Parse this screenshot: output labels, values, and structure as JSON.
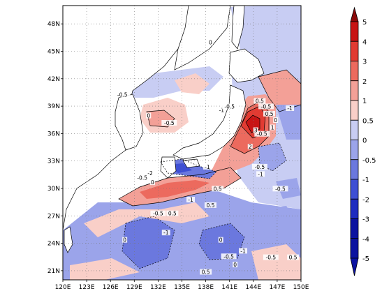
{
  "map": {
    "lon_ticks": [
      "120E",
      "123E",
      "126E",
      "129E",
      "132E",
      "135E",
      "138E",
      "141E",
      "144E",
      "147E",
      "150E"
    ],
    "lat_ticks": [
      "48N",
      "45N",
      "42N",
      "39N",
      "36N",
      "33N",
      "30N",
      "27N",
      "24N",
      "21N"
    ],
    "lon_range": [
      120,
      150
    ],
    "lat_range": [
      20,
      50
    ],
    "grid": "dotted",
    "contour_labels": [
      {
        "text": "0",
        "lon": 138.6,
        "lat": 45.9
      },
      {
        "text": "-0.5",
        "lon": 127.5,
        "lat": 40.2
      },
      {
        "text": "0",
        "lon": 130.8,
        "lat": 37.9
      },
      {
        "text": "-0.5",
        "lon": 133.4,
        "lat": 37.1
      },
      {
        "text": "-1",
        "lon": 140.0,
        "lat": 38.5
      },
      {
        "text": "-0.5",
        "lon": 141.0,
        "lat": 38.9
      },
      {
        "text": "-0.5",
        "lon": 145.6,
        "lat": 38.9
      },
      {
        "text": "0.5",
        "lon": 144.8,
        "lat": 39.5
      },
      {
        "text": "-1",
        "lon": 148.6,
        "lat": 38.7
      },
      {
        "text": "0.5",
        "lon": 146.0,
        "lat": 38.1
      },
      {
        "text": "0",
        "lon": 146.8,
        "lat": 37.4
      },
      {
        "text": "1",
        "lon": 146.4,
        "lat": 36.6
      },
      {
        "text": "-0.5",
        "lon": 145.1,
        "lat": 35.9
      },
      {
        "text": "3",
        "lon": 144.3,
        "lat": 36.3
      },
      {
        "text": "2",
        "lon": 143.6,
        "lat": 34.5
      },
      {
        "text": "-1",
        "lon": 138.2,
        "lat": 32.3
      },
      {
        "text": "-0.5",
        "lon": 144.8,
        "lat": 32.3
      },
      {
        "text": "-1",
        "lon": 144.9,
        "lat": 31.5
      },
      {
        "text": "-2",
        "lon": 131.0,
        "lat": 31.6
      },
      {
        "text": "-0.5",
        "lon": 130.0,
        "lat": 31.1
      },
      {
        "text": "0",
        "lon": 131.3,
        "lat": 30.6
      },
      {
        "text": "0.5",
        "lon": 139.5,
        "lat": 29.9
      },
      {
        "text": "-0.5",
        "lon": 147.4,
        "lat": 29.9
      },
      {
        "text": "-1",
        "lon": 136.1,
        "lat": 28.7
      },
      {
        "text": "0.5",
        "lon": 138.6,
        "lat": 28.1
      },
      {
        "text": "-0.5",
        "lon": 132.0,
        "lat": 27.2
      },
      {
        "text": "0.5",
        "lon": 133.8,
        "lat": 27.2
      },
      {
        "text": "-1",
        "lon": 133.0,
        "lat": 25.1
      },
      {
        "text": "0",
        "lon": 127.8,
        "lat": 24.3
      },
      {
        "text": "0",
        "lon": 139.9,
        "lat": 24.3
      },
      {
        "text": "-1",
        "lon": 142.7,
        "lat": 23.1
      },
      {
        "text": "-0.5",
        "lon": 140.9,
        "lat": 22.5
      },
      {
        "text": "-0.5",
        "lon": 146.2,
        "lat": 22.4
      },
      {
        "text": "0.5",
        "lon": 149.0,
        "lat": 22.4
      },
      {
        "text": "0",
        "lon": 141.7,
        "lat": 21.6
      },
      {
        "text": "0.5",
        "lon": 138.0,
        "lat": 20.8
      }
    ]
  },
  "legend": {
    "labels": [
      "5",
      "4",
      "3",
      "2",
      "1",
      "0.5",
      "0",
      "-0.5",
      "-1",
      "-2",
      "-3",
      "-4",
      "-5"
    ],
    "colors": [
      "#8c0a0a",
      "#c81414",
      "#e23b32",
      "#ec6a5e",
      "#f3a097",
      "#f9cfc8",
      "#c8cdf3",
      "#9ba4ea",
      "#6b78de",
      "#3e4fd4",
      "#1e2cc0",
      "#0b12a0"
    ]
  }
}
